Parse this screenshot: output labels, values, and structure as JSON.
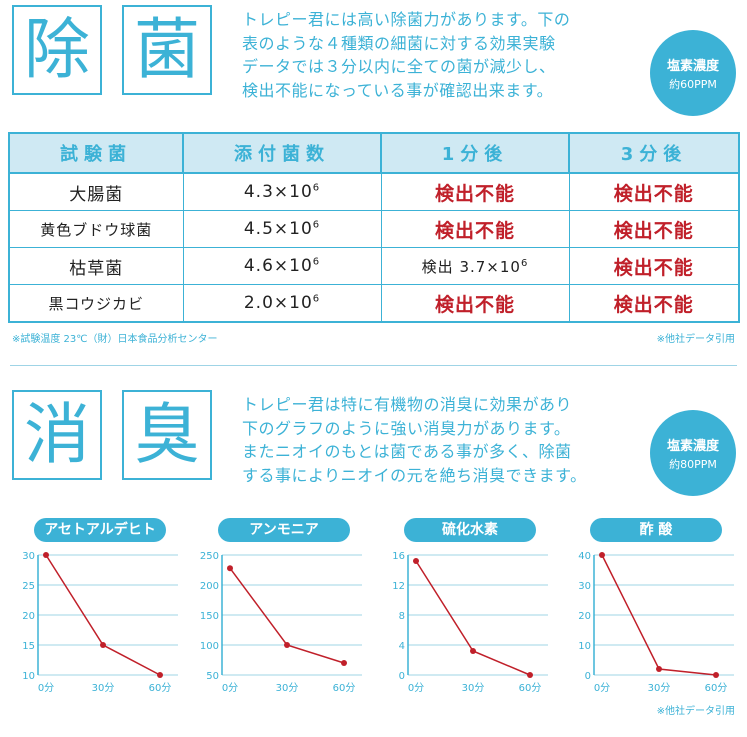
{
  "section1": {
    "heading_chars": [
      "除",
      "菌"
    ],
    "paragraph": [
      "トレピー君には高い除菌力があります。下の",
      "表のような４種類の細菌に対する効果実験",
      "データでは３分以内に全ての菌が減少し、",
      "検出不能になっている事が確認出来ます。"
    ],
    "badge": {
      "line1": "塩素濃度",
      "line2": "約60PPM"
    }
  },
  "table": {
    "headers": [
      "試験菌",
      "添付菌数",
      "1分後",
      "3分後"
    ],
    "rows": [
      {
        "name": "大腸菌",
        "count": "4.3×10",
        "exp": "6",
        "after1": "検出不能",
        "after1_exp": "",
        "after3": "検出不能"
      },
      {
        "name": "黄色ブドウ球菌",
        "count": "4.5×10",
        "exp": "6",
        "after1": "検出不能",
        "after1_exp": "",
        "after3": "検出不能"
      },
      {
        "name": "枯草菌",
        "count": "4.6×10",
        "exp": "6",
        "after1": "検出 3.7×10",
        "after1_exp": "6",
        "after3": "検出不能"
      },
      {
        "name": "黒コウジカビ",
        "count": "2.0×10",
        "exp": "6",
        "after1": "検出不能",
        "after1_exp": "",
        "after3": "検出不能"
      }
    ],
    "note_left": "※試験温度 23℃（財）日本食品分析センター",
    "note_right": "※他社データ引用"
  },
  "section2": {
    "heading_chars": [
      "消",
      "臭"
    ],
    "paragraph": [
      "トレピー君は特に有機物の消臭に効果があり",
      "下のグラフのように強い消臭力があります。",
      "またニオイのもとは菌である事が多く、除菌",
      "する事によりニオイの元を絶ち消臭できます。"
    ],
    "badge": {
      "line1": "塩素濃度",
      "line2": "約80PPM"
    },
    "note": "※他社データ引用"
  },
  "colors": {
    "accent": "#3cb2d6",
    "line": "#c0202a",
    "header_bg": "#cfe9f3"
  },
  "chart_data": [
    {
      "type": "line",
      "title": "アセトアルデヒト",
      "categories": [
        "0分",
        "30分",
        "60分"
      ],
      "values": [
        30,
        15,
        10
      ],
      "yticks": [
        10,
        15,
        20,
        25,
        30
      ],
      "ylim": [
        10,
        30
      ]
    },
    {
      "type": "line",
      "title": "アンモニア",
      "categories": [
        "0分",
        "30分",
        "60分"
      ],
      "values": [
        228,
        100,
        70
      ],
      "yticks": [
        50,
        100,
        150,
        200,
        250
      ],
      "ylim": [
        50,
        250
      ]
    },
    {
      "type": "line",
      "title": "硫化水素",
      "categories": [
        "0分",
        "30分",
        "60分"
      ],
      "values": [
        15.2,
        3.2,
        0
      ],
      "yticks": [
        0,
        4,
        8,
        12,
        16
      ],
      "ylim": [
        0,
        16
      ]
    },
    {
      "type": "line",
      "title": "酢 酸",
      "categories": [
        "0分",
        "30分",
        "60分"
      ],
      "values": [
        40,
        2,
        0
      ],
      "yticks": [
        0,
        10,
        20,
        30,
        40
      ],
      "ylim": [
        0,
        40
      ]
    }
  ]
}
